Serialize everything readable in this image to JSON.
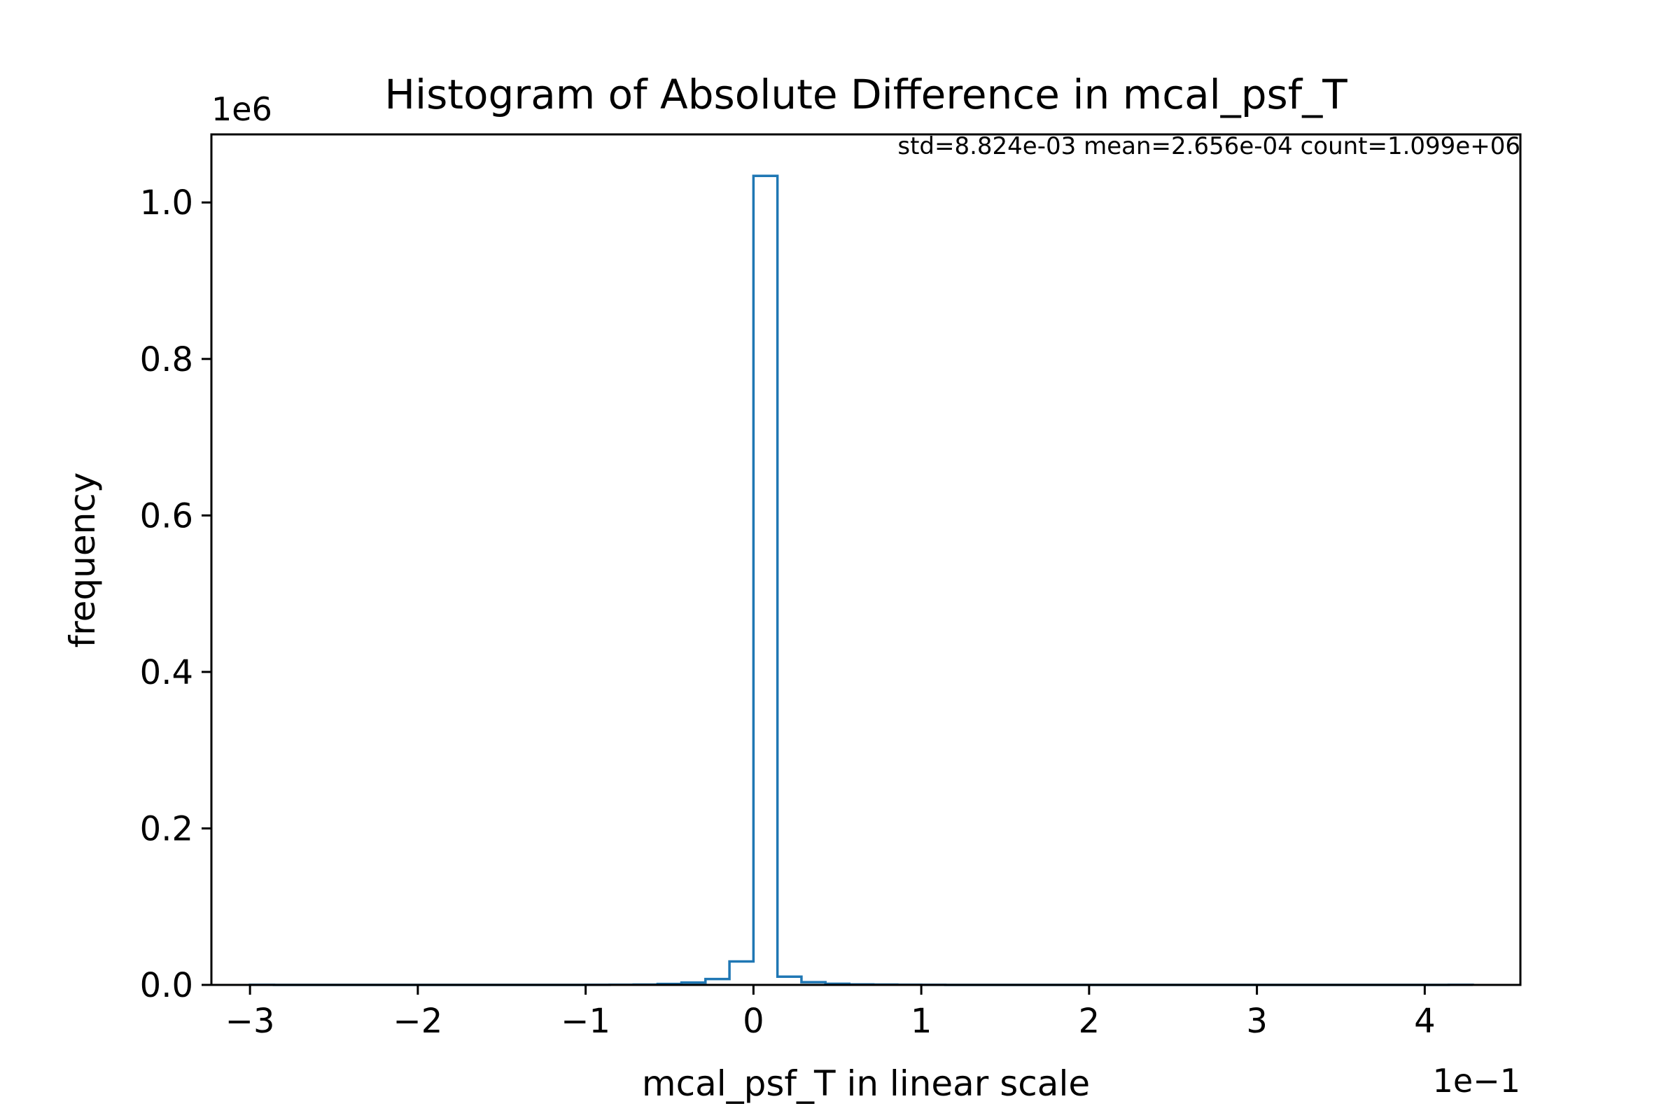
{
  "chart_data": {
    "type": "histogram",
    "title": "Histogram of Absolute Difference in mcal_psf_T",
    "xlabel": "mcal_psf_T in linear scale",
    "ylabel": "frequency",
    "x_offset_label": "1e−1",
    "y_offset_label": "1e6",
    "x_scale_factor": 0.1,
    "y_scale_factor": 1000000,
    "annotation": "std=8.824e-03 mean=2.656e-04 count=1.099e+06",
    "xlim": [
      -3.23,
      4.57
    ],
    "ylim": [
      0,
      1.087
    ],
    "xticks": [
      -3,
      -2,
      -1,
      0,
      1,
      2,
      3,
      4
    ],
    "xtick_labels": [
      "−3",
      "−2",
      "−1",
      "0",
      "1",
      "2",
      "3",
      "4"
    ],
    "yticks": [
      0.0,
      0.2,
      0.4,
      0.6,
      0.8,
      1.0
    ],
    "ytick_labels": [
      "0.0",
      "0.2",
      "0.4",
      "0.6",
      "0.8",
      "1.0"
    ],
    "grid": false,
    "line_color": "#1f77b4",
    "bin_edges": [
      -3.0,
      -2.857,
      -2.714,
      -2.571,
      -2.429,
      -2.286,
      -2.143,
      -2.0,
      -1.857,
      -1.714,
      -1.571,
      -1.429,
      -1.286,
      -1.143,
      -1.0,
      -0.857,
      -0.714,
      -0.571,
      -0.429,
      -0.286,
      -0.143,
      0.0,
      0.143,
      0.286,
      0.429,
      0.571,
      0.714,
      0.857,
      1.0,
      1.143,
      1.286,
      1.429,
      1.571,
      1.714,
      1.857,
      2.0,
      2.143,
      2.286,
      2.429,
      2.571,
      2.714,
      2.857,
      3.0,
      3.143,
      3.286,
      3.429,
      3.571,
      3.714,
      3.857,
      4.0,
      4.143,
      4.286
    ],
    "counts": [
      0.0001,
      0,
      0,
      0,
      0,
      0,
      0,
      0,
      0,
      0,
      0,
      0,
      0,
      0,
      0.0001,
      0.0002,
      0.0005,
      0.0012,
      0.003,
      0.0075,
      0.03,
      1.034,
      0.0105,
      0.0035,
      0.0015,
      0.0007,
      0.0004,
      0.0002,
      0.0001,
      0,
      0,
      0,
      0,
      0,
      0,
      0,
      0,
      0,
      0,
      0,
      0,
      0,
      0,
      0,
      0,
      0,
      0,
      0,
      0,
      0,
      0.0001
    ]
  }
}
